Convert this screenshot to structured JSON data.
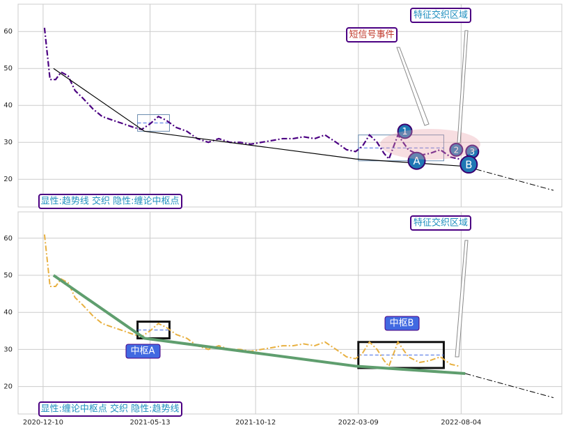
{
  "chart_data": [
    {
      "type": "line",
      "xlim": [
        "2020-11-04",
        "2022-12-27"
      ],
      "ylim": [
        12.5,
        67.4
      ],
      "xticks": [
        "2020-12-10",
        "2021-05-13",
        "2021-10-12",
        "2022-03-09",
        "2022-08-04"
      ],
      "show_xtick_labels": false,
      "yticks": [
        20,
        30,
        40,
        50,
        60
      ],
      "grid": true,
      "series": [
        {
          "color": "#4b0082",
          "style": "dashdot",
          "width": 2.2,
          "x": [
            "2020-12-12",
            "2020-12-20",
            "2020-12-28",
            "2021-01-05",
            "2021-01-15",
            "2021-01-25",
            "2021-02-05",
            "2021-02-20",
            "2021-03-05",
            "2021-03-20",
            "2021-04-05",
            "2021-04-20",
            "2021-05-01",
            "2021-05-13",
            "2021-05-25",
            "2021-06-05",
            "2021-06-20",
            "2021-07-05",
            "2021-07-20",
            "2021-08-05",
            "2021-08-20",
            "2021-09-05",
            "2021-09-20",
            "2021-10-05",
            "2021-10-20",
            "2021-11-05",
            "2021-11-20",
            "2021-12-05",
            "2021-12-20",
            "2022-01-05",
            "2022-01-20",
            "2022-02-05",
            "2022-02-20",
            "2022-03-05",
            "2022-03-15",
            "2022-03-25",
            "2022-04-05",
            "2022-04-15",
            "2022-04-22",
            "2022-05-05",
            "2022-05-20",
            "2022-06-05",
            "2022-06-20",
            "2022-07-05",
            "2022-07-20",
            "2022-08-01"
          ],
          "values": [
            61,
            47,
            47,
            49,
            48,
            44,
            42,
            39,
            37,
            36,
            35,
            34,
            33.5,
            35,
            37,
            36,
            34,
            33,
            31,
            30,
            31,
            30,
            30,
            29.5,
            30,
            30.5,
            31,
            31,
            31.5,
            31,
            32,
            30,
            28,
            27.5,
            29,
            32,
            30,
            27,
            25.5,
            32,
            28,
            26.5,
            27,
            28,
            26,
            25.5
          ]
        },
        {
          "color": "#000000",
          "style": "solid",
          "width": 1.2,
          "x": [
            "2020-12-25",
            "2021-05-05",
            "2022-03-05",
            "2022-08-10"
          ],
          "values": [
            50,
            33,
            25.5,
            23.5
          ]
        },
        {
          "color": "#000000",
          "style": "dashdot",
          "width": 1,
          "x": [
            "2022-08-10",
            "2022-12-15"
          ],
          "values": [
            23.5,
            17
          ]
        }
      ],
      "zhongshu": [
        {
          "x0": "2021-04-25",
          "x1": "2021-06-10",
          "y0": 33,
          "y1": 37.5
        },
        {
          "x0": "2022-03-09",
          "x1": "2022-07-10",
          "y0": 25,
          "y1": 32
        }
      ],
      "markers": [
        {
          "label": "1",
          "x": "2022-05-15",
          "y": 33,
          "color": "#1f77b4",
          "r": 10
        },
        {
          "label": "A",
          "x": "2022-06-01",
          "y": 25,
          "color": "#1f77b4",
          "r": 12
        },
        {
          "label": "2",
          "x": "2022-07-28",
          "y": 28,
          "color": "#1f77b4",
          "r": 9
        },
        {
          "label": "3",
          "x": "2022-08-20",
          "y": 27.5,
          "color": "#1f77b4",
          "r": 9
        },
        {
          "label": "B",
          "x": "2022-08-15",
          "y": 24,
          "color": "#1f77b4",
          "r": 12
        }
      ],
      "annotations": [
        "短信号事件",
        "特征交织区域",
        "显性:趋势线 交织 隐性:缠论中枢点"
      ]
    },
    {
      "type": "line",
      "xlim": [
        "2020-11-04",
        "2022-12-27"
      ],
      "ylim": [
        12.6,
        67.1
      ],
      "xticks": [
        "2020-12-10",
        "2021-05-13",
        "2021-10-12",
        "2022-03-09",
        "2022-08-04"
      ],
      "show_xtick_labels": true,
      "yticks": [
        20,
        30,
        40,
        50,
        60
      ],
      "grid": true,
      "series": [
        {
          "color": "#e8b040",
          "style": "dashdot",
          "width": 2,
          "x": [
            "2020-12-12",
            "2020-12-20",
            "2020-12-28",
            "2021-01-05",
            "2021-01-15",
            "2021-01-25",
            "2021-02-05",
            "2021-02-20",
            "2021-03-05",
            "2021-03-20",
            "2021-04-05",
            "2021-04-20",
            "2021-05-01",
            "2021-05-13",
            "2021-05-25",
            "2021-06-05",
            "2021-06-20",
            "2021-07-05",
            "2021-07-20",
            "2021-08-05",
            "2021-08-20",
            "2021-09-05",
            "2021-09-20",
            "2021-10-05",
            "2021-10-20",
            "2021-11-05",
            "2021-11-20",
            "2021-12-05",
            "2021-12-20",
            "2022-01-05",
            "2022-01-20",
            "2022-02-05",
            "2022-02-20",
            "2022-03-05",
            "2022-03-15",
            "2022-03-25",
            "2022-04-05",
            "2022-04-15",
            "2022-04-22",
            "2022-05-05",
            "2022-05-20",
            "2022-06-05",
            "2022-06-20",
            "2022-07-05",
            "2022-07-20",
            "2022-08-01"
          ],
          "values": [
            61,
            47,
            47,
            49,
            48,
            44,
            42,
            39,
            37,
            36,
            35,
            34,
            33.5,
            35,
            37,
            36,
            34,
            33,
            31,
            30,
            31,
            30,
            30,
            29.5,
            30,
            30.5,
            31,
            31,
            31.5,
            31,
            32,
            30,
            28,
            27.5,
            29,
            32,
            30,
            27,
            25.5,
            32,
            28,
            26.5,
            27,
            28,
            26,
            25.5
          ]
        },
        {
          "color": "#5f9e6e",
          "style": "solid",
          "width": 4,
          "x": [
            "2020-12-25",
            "2021-05-05",
            "2022-03-05",
            "2022-08-10"
          ],
          "values": [
            50,
            33,
            25.5,
            23.5
          ]
        },
        {
          "color": "#000000",
          "style": "dashdot",
          "width": 1,
          "x": [
            "2022-08-10",
            "2022-12-15"
          ],
          "values": [
            23.5,
            17
          ]
        }
      ],
      "zhongshu": [
        {
          "x0": "2021-04-25",
          "x1": "2021-06-10",
          "y0": 33,
          "y1": 37.5,
          "label": "中枢A"
        },
        {
          "x0": "2022-03-09",
          "x1": "2022-07-10",
          "y0": 25,
          "y1": 32,
          "label": "中枢B"
        }
      ],
      "annotations": [
        "特征交织区域",
        "显性:缠论中枢点 交织 隐性:趋势线"
      ]
    }
  ]
}
